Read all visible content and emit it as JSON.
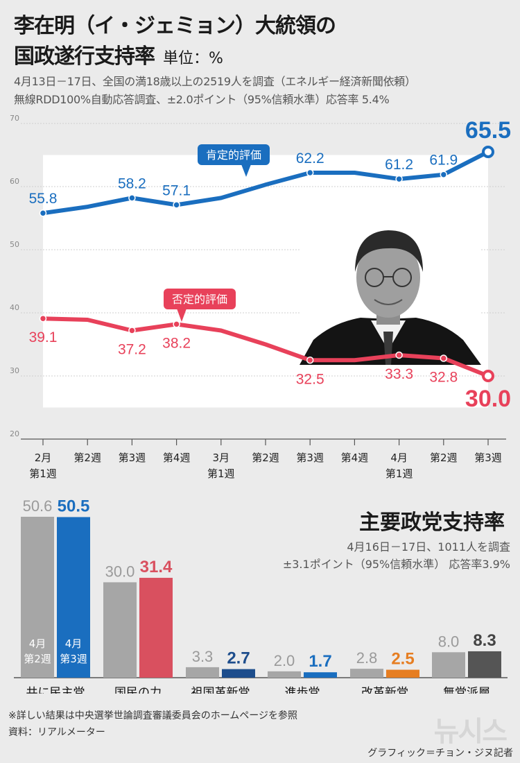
{
  "header": {
    "title_line1": "李在明（イ・ジェミョン）大統領の",
    "title_line2": "国政遂行支持率",
    "unit": "単位：%",
    "subtitle_line1": "4月13日－17日、全国の満18歳以上の2519人を調査（エネルギー経済新聞依頼）",
    "subtitle_line2": "無線RDD100%自動応答調査、±2.0ポイント（95%信頼水準）応答率 5.4%"
  },
  "chart_data": [
    {
      "type": "line",
      "x": [
        "2月 第1週",
        "第2週",
        "第3週",
        "第4週",
        "3月 第1週",
        "第2週",
        "第3週",
        "第4週",
        "4月 第1週",
        "第2週",
        "第3週"
      ],
      "x_tick_labels": [
        [
          "2月",
          "第1週"
        ],
        [
          "第2週"
        ],
        [
          "第3週"
        ],
        [
          "第4週"
        ],
        [
          "3月",
          "第1週"
        ],
        [
          "第2週"
        ],
        [
          "第3週"
        ],
        [
          "第4週"
        ],
        [
          "4月",
          "第1週"
        ],
        [
          "第2週"
        ],
        [
          "第3週"
        ]
      ],
      "yticks": [
        "20",
        "30",
        "40",
        "50",
        "60",
        "70"
      ],
      "ylim": [
        20,
        70
      ],
      "series": [
        {
          "name": "肯定的評価",
          "color": "#1a6ebf",
          "values": [
            55.8,
            56.8,
            58.2,
            57.1,
            58.2,
            60.3,
            62.2,
            62.2,
            61.2,
            61.9,
            65.5
          ],
          "labels": [
            "55.8",
            null,
            "58.2",
            "57.1",
            null,
            null,
            "62.2",
            null,
            "61.2",
            "61.9",
            "65.5"
          ]
        },
        {
          "name": "否定的評価",
          "color": "#e8415a",
          "values": [
            39.1,
            38.9,
            37.2,
            38.2,
            37.2,
            35.0,
            32.5,
            32.5,
            33.3,
            32.8,
            30.0
          ],
          "labels": [
            "39.1",
            null,
            "37.2",
            "38.2",
            null,
            null,
            "32.5",
            null,
            "33.3",
            "32.8",
            "30.0"
          ]
        }
      ]
    },
    {
      "type": "bar",
      "title": "主要政党支持率",
      "subtitle_line1": "4月16日－17日、1011人を調査",
      "subtitle_line2": "±3.1ポイント（95%信頼水準） 応答率3.9%",
      "categories": [
        "共に民主党",
        "国民の力",
        "祖国革新党",
        "進歩党",
        "改革新党",
        "無党派層"
      ],
      "ylim": [
        0,
        55
      ],
      "series": [
        {
          "name": "4月第2週",
          "label_lines": [
            "4月",
            "第2週"
          ],
          "values": [
            50.6,
            30.0,
            3.3,
            2.0,
            2.8,
            8.0
          ],
          "labels": [
            "50.6",
            "30.0",
            "3.3",
            "2.0",
            "2.8",
            "8.0"
          ]
        },
        {
          "name": "4月第3週",
          "label_lines": [
            "4月",
            "第3週"
          ],
          "values": [
            50.5,
            31.4,
            2.7,
            1.7,
            2.5,
            8.3
          ],
          "labels": [
            "50.5",
            "31.4",
            "2.7",
            "1.7",
            "2.5",
            "8.3"
          ]
        }
      ],
      "colors": {
        "previous": "#a6a6a6",
        "current": [
          "#1a6ebf",
          "#d9505f",
          "#1d4d8c",
          "#1a6ebf",
          "#e67e22",
          "#555555"
        ],
        "current_label": [
          "#1a6ebf",
          "#d9505f",
          "#1d4d8c",
          "#1a6ebf",
          "#e67e22",
          "#444444"
        ]
      }
    }
  ],
  "footer": {
    "note": "※詳しい結果は中央選挙世論調査審議委員会のホームページを参照",
    "source": "資料：リアルメーター",
    "credit": "グラフィック＝チョン・ジヌ記者",
    "logo": "뉴시스"
  }
}
